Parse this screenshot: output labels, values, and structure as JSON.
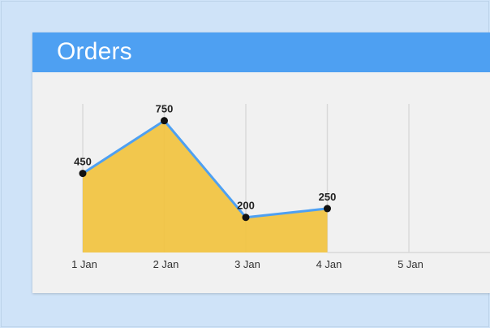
{
  "header": {
    "title": "Orders"
  },
  "chart_data": {
    "type": "area",
    "title": "Orders",
    "xlabel": "",
    "ylabel": "",
    "categories": [
      "1 Jan",
      "2 Jan",
      "3 Jan",
      "4 Jan",
      "5 Jan"
    ],
    "series": [
      {
        "values": [
          450,
          750,
          200,
          250,
          null
        ]
      }
    ],
    "ylim": [
      0,
      850
    ],
    "grid": "vertical",
    "colors": {
      "area_fill": "#f2c33f",
      "line": "#4ea0f2",
      "point": "#111111",
      "grid": "#d8d8d8",
      "header": "#4ea0f2",
      "background": "#cfe3f8",
      "card": "#f1f1f1"
    }
  }
}
